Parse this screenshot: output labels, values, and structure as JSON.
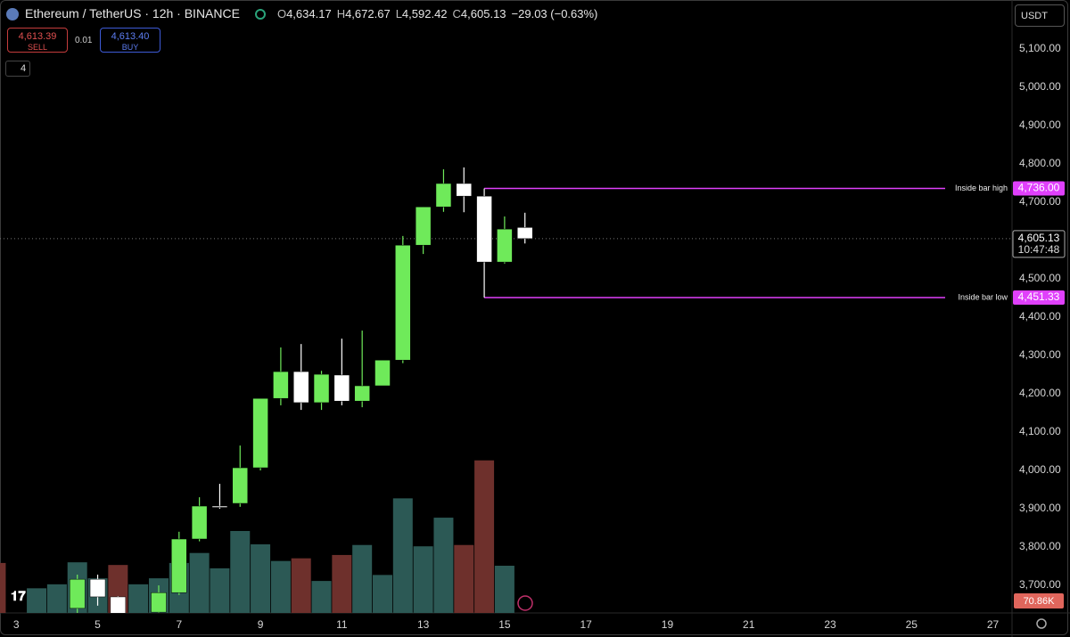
{
  "chart_data": {
    "type": "candlestick",
    "title": "Ethereum / TetherUS · 12h · BINANCE",
    "ohlc_legend": [
      {
        "key": "O",
        "value": "4,634.17"
      },
      {
        "key": "H",
        "value": "4,672.67"
      },
      {
        "key": "L",
        "value": "4,592.42"
      },
      {
        "key": "C",
        "value": "4,605.13"
      }
    ],
    "change": "−29.03 (−0.63%)",
    "x": [
      4.5,
      5,
      5.5,
      6.5,
      7,
      7.5,
      8,
      8.5,
      9,
      9.5,
      10,
      10.5,
      11,
      11.5,
      12,
      12.5,
      13,
      13.5,
      14,
      14.5,
      15,
      15.5
    ],
    "open": [
      3640,
      3716,
      3670,
      3630,
      3681,
      3821,
      3907,
      3914,
      4007,
      4188,
      4258,
      4177,
      4249,
      4181,
      4221,
      4288,
      4588,
      4688,
      4749,
      4716,
      4544,
      4634.17
    ],
    "high": [
      3728,
      3728,
      3672,
      3700,
      3840,
      3930,
      3965,
      4065,
      4188,
      4321,
      4330,
      4260,
      4344,
      4365,
      4288,
      4612,
      4688,
      4786,
      4791,
      4736,
      4663,
      4672.67
    ],
    "low": [
      3620,
      3647,
      3610,
      3615,
      3675,
      3815,
      3900,
      3905,
      4000,
      4170,
      4158,
      4158,
      4170,
      4165,
      4221,
      4280,
      4565,
      4675,
      4674,
      4451.33,
      4540,
      4592.42
    ],
    "close": [
      3716,
      3670,
      3620,
      3681,
      3821,
      3907,
      3905,
      4007,
      4188,
      4258,
      4177,
      4251,
      4181,
      4221,
      4288,
      4588,
      4688,
      4749,
      4716,
      4544,
      4630,
      4605.13
    ],
    "up_color": "#6fea5a",
    "down_color": "#ffffff",
    "volume": {
      "x": [
        2.5,
        3.5,
        4,
        4.5,
        5,
        5.5,
        6,
        6.5,
        7,
        7.5,
        8,
        8.5,
        9,
        9.5,
        10,
        10.5,
        11,
        11.5,
        12,
        12.5,
        13,
        13.5,
        14,
        14.5,
        15
      ],
      "values": [
        75,
        37,
        43,
        76,
        52,
        72,
        43,
        52,
        75,
        90,
        67,
        123,
        103,
        78,
        82,
        48,
        87,
        102,
        57,
        172,
        100,
        143,
        102,
        229,
        70.86
      ],
      "value_labels": [
        null,
        null,
        null,
        null,
        null,
        null,
        null,
        null,
        null,
        null,
        null,
        null,
        null,
        null,
        null,
        null,
        null,
        null,
        null,
        null,
        null,
        null,
        null,
        null,
        "70.86K"
      ],
      "colors": [
        "#6e302c",
        "#2c5955",
        "#2c5955",
        "#2c5955",
        "#2c5955",
        "#6e302c",
        "#2c5955",
        "#2c5955",
        "#2c5955",
        "#2c5955",
        "#2c5955",
        "#2c5955",
        "#2c5955",
        "#2c5955",
        "#6e302c",
        "#2c5955",
        "#6e302c",
        "#2c5955",
        "#2c5955",
        "#2c5955",
        "#2c5955",
        "#2c5955",
        "#6e302c",
        "#6e302c",
        "#2c5955"
      ],
      "label_color": "#e0665c",
      "vlim": [
        0,
        920
      ]
    },
    "xlim": [
      2.6,
      27.47
    ],
    "xticks": [
      3,
      5,
      7,
      9,
      11,
      13,
      15,
      17,
      19,
      21,
      23,
      25,
      27
    ],
    "ylim": [
      3628,
      5228
    ],
    "yticks": [
      {
        "value": 3700,
        "label": "3,700.00"
      },
      {
        "value": 3800,
        "label": "3,800.00"
      },
      {
        "value": 3900,
        "label": "3,900.00"
      },
      {
        "value": 4000,
        "label": "4,000.00"
      },
      {
        "value": 4100,
        "label": "4,100.00"
      },
      {
        "value": 4200,
        "label": "4,200.00"
      },
      {
        "value": 4300,
        "label": "4,300.00"
      },
      {
        "value": 4400,
        "label": "4,400.00"
      },
      {
        "value": 4500,
        "label": "4,500.00"
      },
      {
        "value": 4600,
        "label": "4,600.00"
      },
      {
        "value": 4700,
        "label": "4,700.00"
      },
      {
        "value": 4800,
        "label": "4,800.00"
      },
      {
        "value": 4900,
        "label": "4,900.00"
      },
      {
        "value": 5000,
        "label": "5,000.00"
      },
      {
        "value": 5100,
        "label": "5,100.00"
      }
    ],
    "grid": false,
    "current_price": {
      "value": 4605.13,
      "label": "4,605.13",
      "countdown": "10:47:48"
    },
    "levels": [
      {
        "name": "Inside bar high",
        "value": 4736,
        "label": "4,736.00",
        "from": 14.5,
        "color": "#e040fb"
      },
      {
        "name": "Inside bar low",
        "value": 4451.33,
        "label": "4,451.33",
        "from": 14.5,
        "color": "#e040fb"
      }
    ]
  },
  "trade": {
    "sell_price": "4,613.39",
    "sell": "SELL",
    "quantity": "0.01",
    "buy_price": "4,613.40",
    "buy": "BUY"
  },
  "indicators_count": "4",
  "currency": "USDT"
}
